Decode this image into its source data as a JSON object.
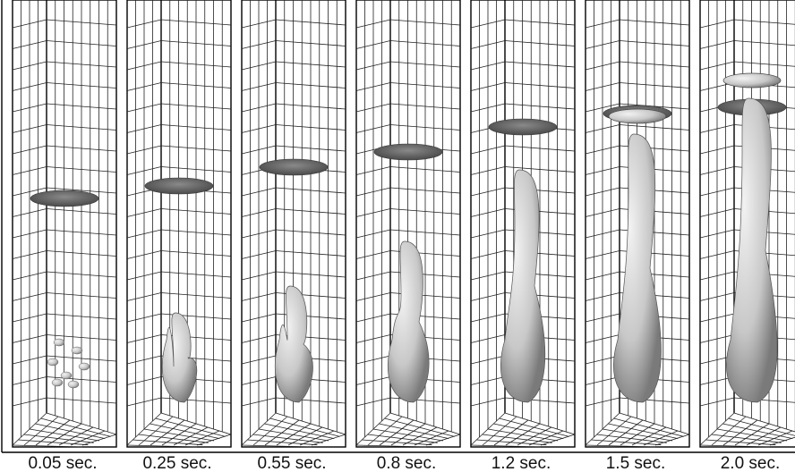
{
  "panels": [
    {
      "label": "0.05 sec."
    },
    {
      "label": "0.25 sec."
    },
    {
      "label": "0.55 sec."
    },
    {
      "label": "0.8 sec."
    },
    {
      "label": "1.2 sec."
    },
    {
      "label": "1.5 sec."
    },
    {
      "label": "2.0 sec."
    }
  ]
}
